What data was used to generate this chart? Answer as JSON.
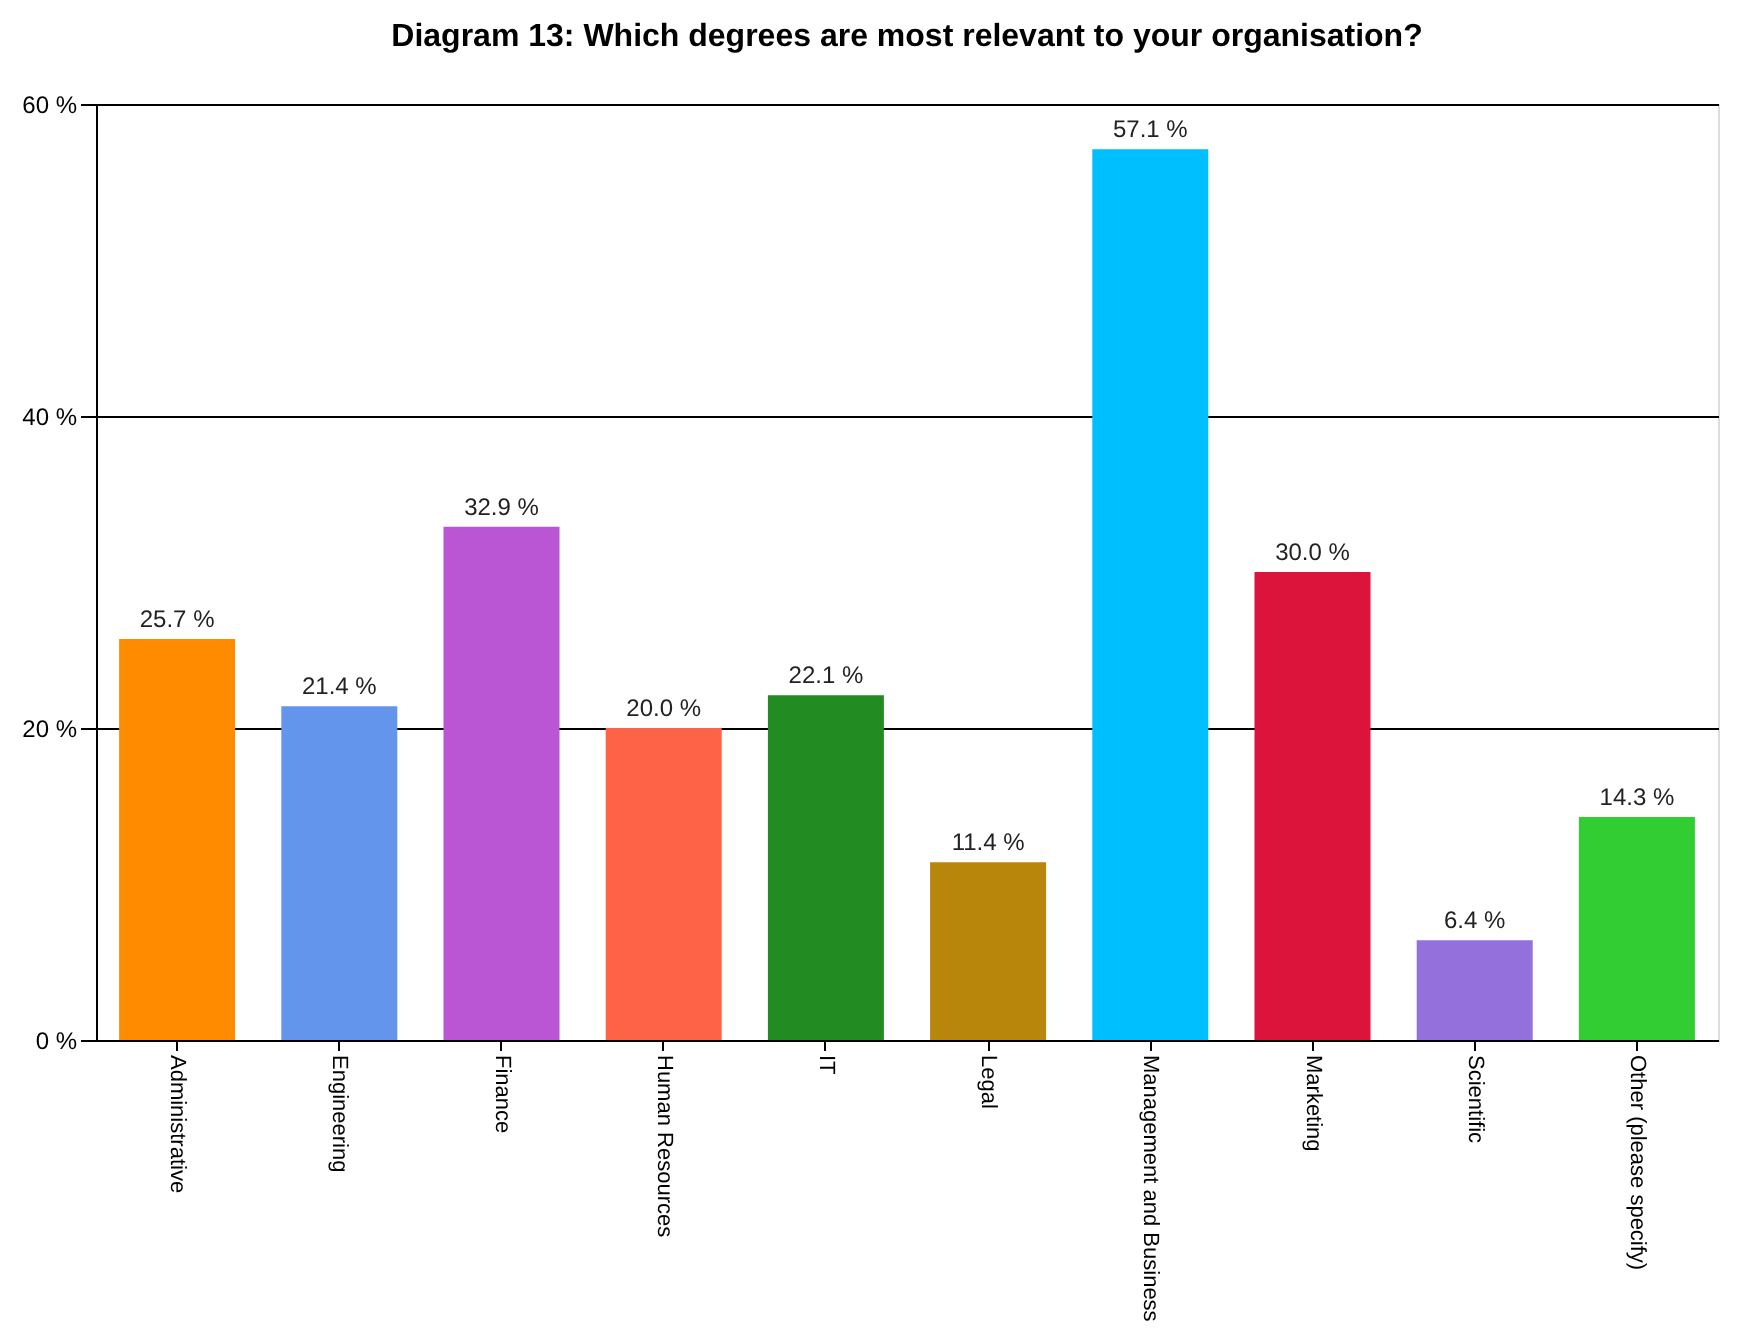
{
  "chart_data": {
    "type": "bar",
    "title": "Diagram 13: Which degrees are most relevant to your organisation?",
    "categories": [
      "Administrative",
      "Engineering",
      "Finance",
      "Human Resources",
      "IT",
      "Legal",
      "Management and Business",
      "Marketing",
      "Scientific",
      "Other (please specify)"
    ],
    "values": [
      25.7,
      21.4,
      32.9,
      20.0,
      22.1,
      11.4,
      57.1,
      30.0,
      6.4,
      14.3
    ],
    "value_labels": [
      "25.7 %",
      "21.4 %",
      "32.9 %",
      "20.0 %",
      "22.1 %",
      "11.4 %",
      "57.1 %",
      "30.0 %",
      "6.4 %",
      "14.3 %"
    ],
    "colors": [
      "#ff8c00",
      "#6495ed",
      "#ba55d3",
      "#ff6347",
      "#228b22",
      "#b8860b",
      "#00bfff",
      "#dc143c",
      "#9370db",
      "#32cd32"
    ],
    "ylim": [
      0,
      60
    ],
    "yticks": [
      {
        "value": 0,
        "label": "0 %"
      },
      {
        "value": 20,
        "label": "20 %"
      },
      {
        "value": 40,
        "label": "40 %"
      },
      {
        "value": 60,
        "label": "60 %"
      }
    ],
    "grid": "y"
  }
}
